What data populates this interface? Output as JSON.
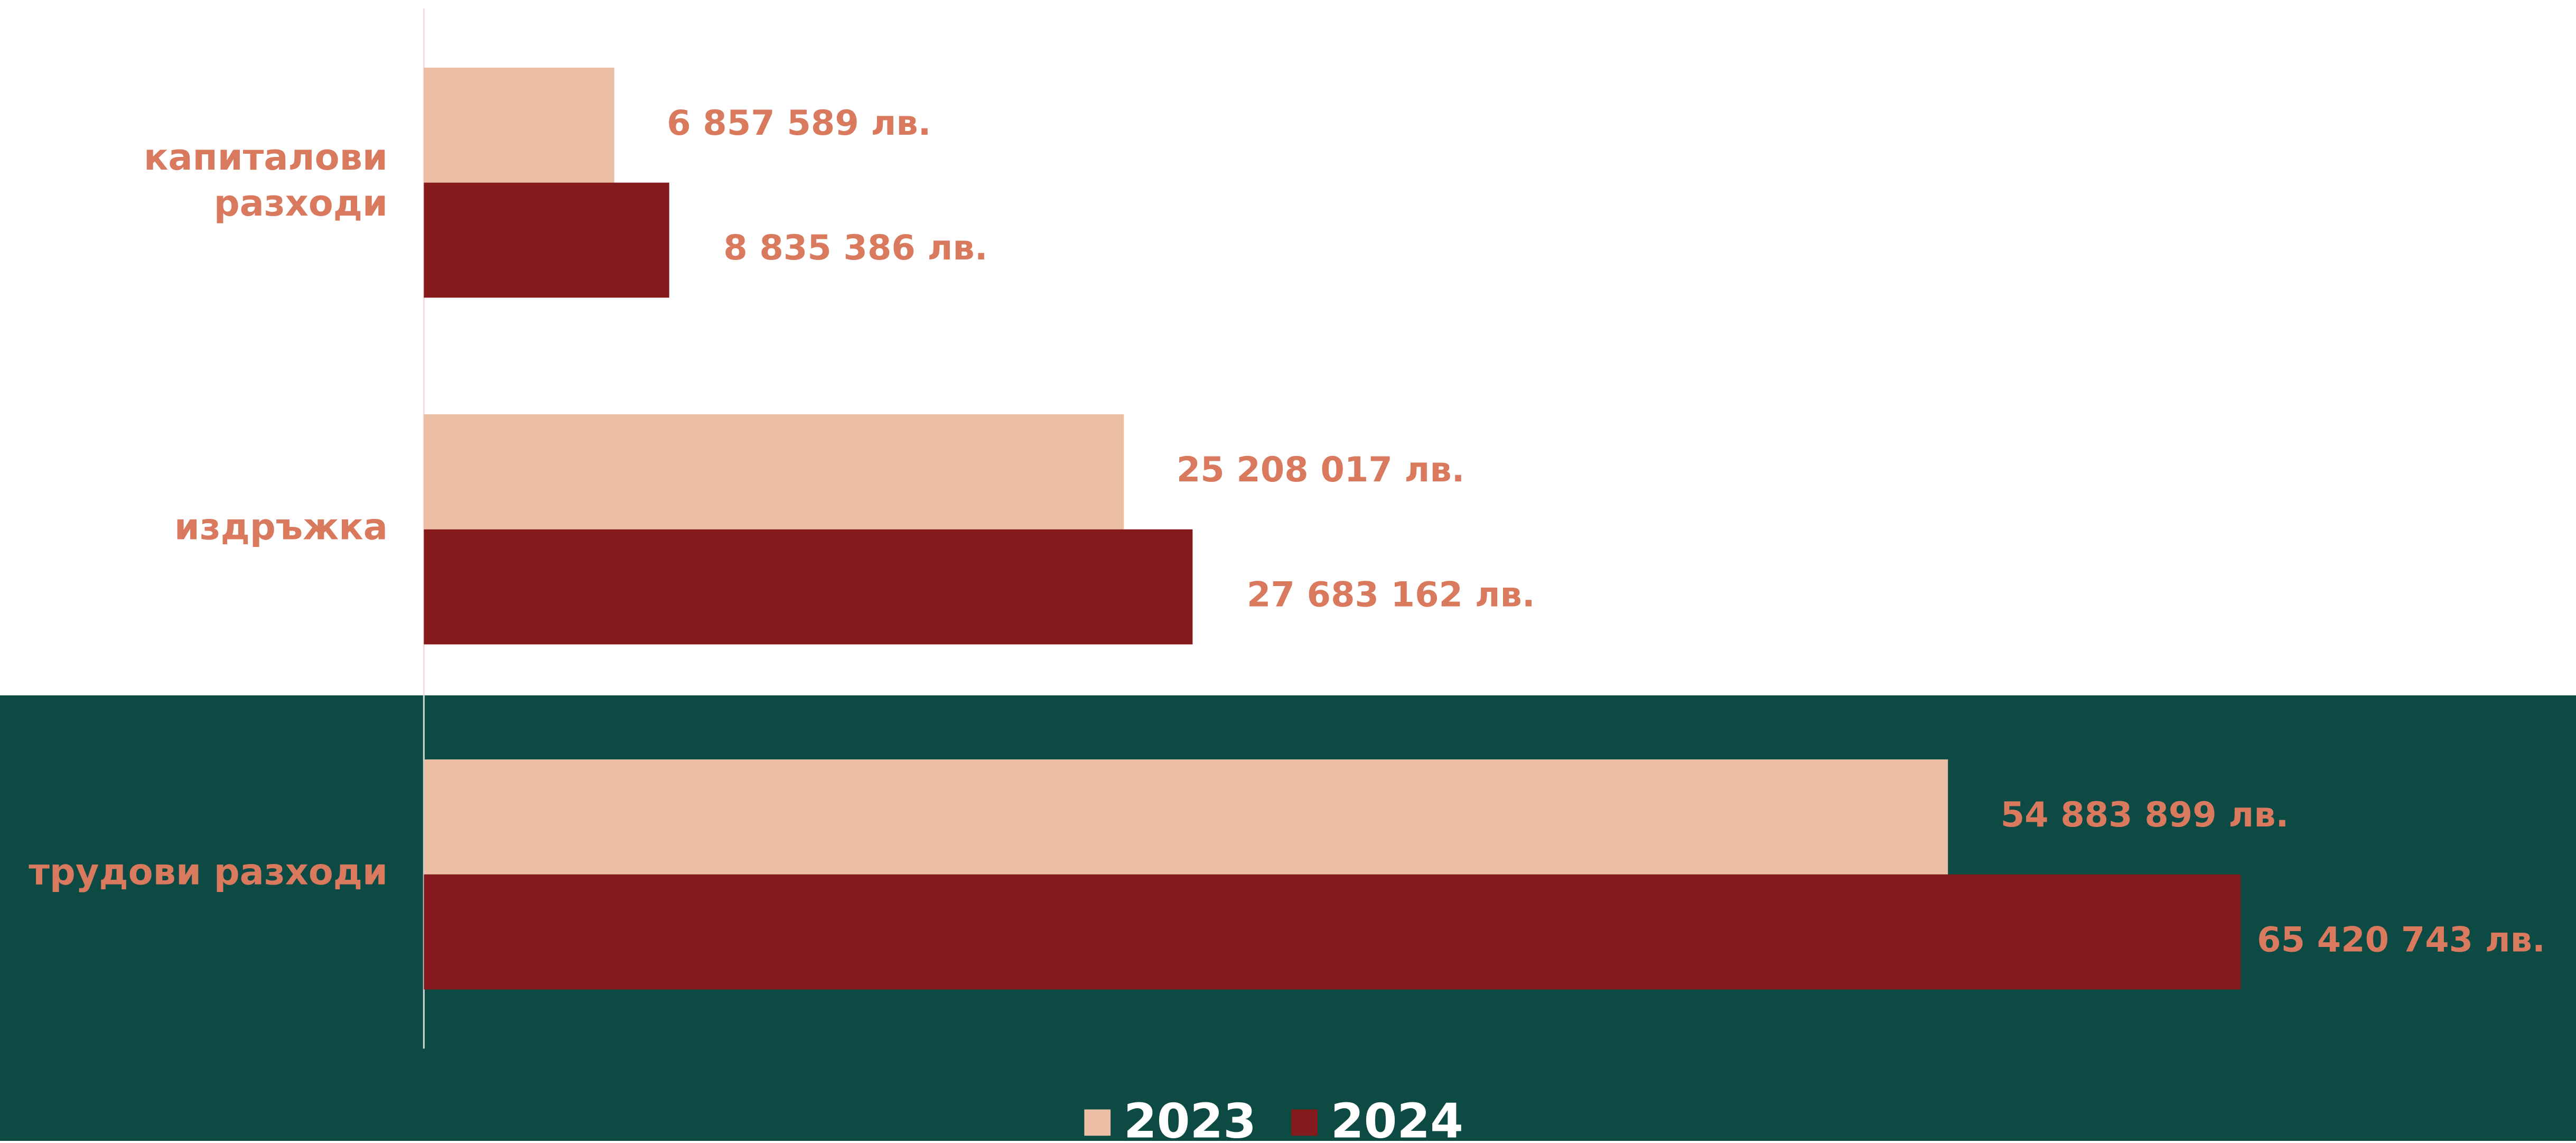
{
  "chart_data": {
    "type": "hbar",
    "categories": [
      "капиталови\nразходи",
      "издръжка",
      "трудови разходи"
    ],
    "series": [
      {
        "name": "2023",
        "color": "#ecbfa5",
        "values": [
          6857589,
          25208017,
          54883899
        ],
        "value_labels": [
          "6 857 589 лв.",
          "25 208 017 лв.",
          "54 883 899 лв."
        ]
      },
      {
        "name": "2024",
        "color": "#851a1c",
        "values": [
          8835386,
          27683162,
          65420743
        ],
        "value_labels": [
          "8 835 386 лв.",
          "27 683 162 лв.",
          "65 420 743 лв."
        ]
      }
    ],
    "xlim": [
      0,
      77500000
    ],
    "label_color": "#d97a5e",
    "legend": "bottom"
  }
}
